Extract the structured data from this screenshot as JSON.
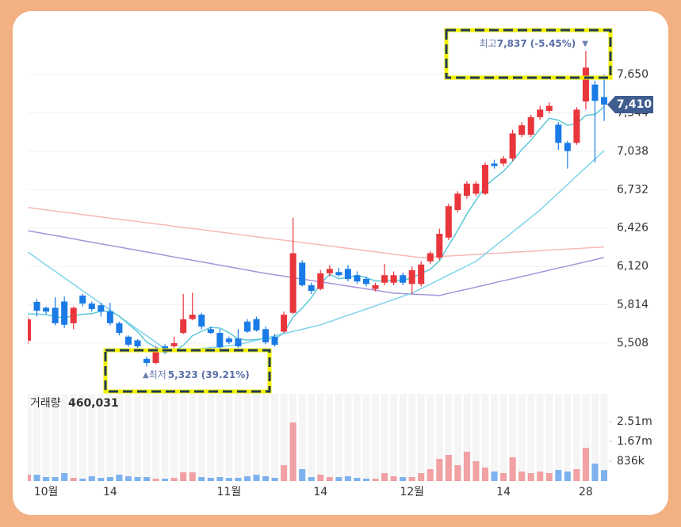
{
  "chart_data": {
    "type": "candlestick",
    "categories": [
      null,
      null,
      "10월",
      null,
      null,
      null,
      null,
      null,
      null,
      "14",
      null,
      null,
      null,
      null,
      null,
      null,
      null,
      null,
      null,
      null,
      null,
      null,
      "11월",
      null,
      null,
      null,
      null,
      null,
      null,
      null,
      null,
      null,
      "14",
      null,
      null,
      null,
      null,
      null,
      null,
      null,
      null,
      null,
      "12월",
      null,
      null,
      null,
      null,
      null,
      null,
      null,
      null,
      null,
      "14",
      null,
      null,
      null,
      null,
      null,
      null,
      null,
      null,
      "28",
      null,
      null
    ],
    "open": [
      5528,
      5837,
      5790,
      5790,
      5840,
      5667,
      5887,
      5824,
      5810,
      5760,
      5667,
      5560,
      5530,
      5383,
      5350,
      5483,
      5483,
      5590,
      5700,
      5735,
      5620,
      5590,
      5545,
      5545,
      5680,
      5700,
      5620,
      5560,
      5600,
      5750,
      6150,
      5970,
      5940,
      6065,
      6075,
      6100,
      6050,
      6020,
      5940,
      5990,
      5990,
      6050,
      5980,
      5980,
      6160,
      6190,
      6350,
      6570,
      6683,
      6700,
      6700,
      6940,
      6940,
      6980,
      7170,
      7170,
      7310,
      7360,
      7250,
      7105,
      7105,
      7435,
      7570,
      7470
    ],
    "high": [
      5720,
      5860,
      5800,
      5875,
      5880,
      5800,
      5900,
      5840,
      5830,
      5830,
      5680,
      5570,
      5540,
      5400,
      5480,
      5500,
      5560,
      5900,
      5910,
      5750,
      5640,
      5620,
      5560,
      5620,
      5700,
      5720,
      5640,
      5580,
      5760,
      6507,
      6170,
      5990,
      6090,
      6130,
      6110,
      6130,
      6080,
      6040,
      5990,
      6140,
      6080,
      6070,
      6120,
      6160,
      6240,
      6420,
      6620,
      6720,
      6800,
      6800,
      6950,
      6970,
      7000,
      7210,
      7270,
      7330,
      7400,
      7430,
      7270,
      7120,
      7390,
      7837,
      7600,
      7650
    ],
    "low": [
      5500,
      5720,
      5740,
      5650,
      5630,
      5620,
      5800,
      5760,
      5720,
      5650,
      5570,
      5480,
      5470,
      5323,
      5340,
      5420,
      5470,
      5580,
      5690,
      5620,
      5580,
      5460,
      5500,
      5470,
      5590,
      5600,
      5500,
      5480,
      5590,
      5740,
      5960,
      5900,
      5930,
      6040,
      6040,
      6000,
      5980,
      5960,
      5920,
      5970,
      5970,
      5970,
      5900,
      5960,
      6140,
      6170,
      6330,
      6550,
      6660,
      6680,
      6690,
      6900,
      6920,
      6960,
      7150,
      7150,
      7290,
      7340,
      7050,
      6900,
      7090,
      7370,
      6950,
      7280
    ],
    "close": [
      5698,
      5767,
      5760,
      5667,
      5655,
      5790,
      5824,
      5780,
      5760,
      5667,
      5590,
      5496,
      5483,
      5350,
      5463,
      5433,
      5508,
      5698,
      5735,
      5640,
      5590,
      5475,
      5515,
      5483,
      5600,
      5610,
      5515,
      5495,
      5735,
      6225,
      5970,
      5925,
      6065,
      6100,
      6050,
      6020,
      6000,
      5980,
      5970,
      6050,
      6050,
      5990,
      6090,
      6135,
      6225,
      6380,
      6600,
      6700,
      6780,
      6780,
      6930,
      6920,
      6980,
      7180,
      7245,
      7310,
      7370,
      7400,
      7105,
      7040,
      7370,
      7705,
      7440,
      7410
    ],
    "up_color": "#e8363c",
    "down_color": "#1a7be6",
    "moving_averages": [
      {
        "color": "#f6b9b6",
        "values": [
          6589,
          6580,
          6570,
          6561,
          6552,
          6543,
          6533,
          6524,
          6515,
          6505,
          6496,
          6487,
          6478,
          6468,
          6459,
          6450,
          6440,
          6431,
          6422,
          6413,
          6403,
          6394,
          6385,
          6375,
          6366,
          6357,
          6348,
          6338,
          6329,
          6320,
          6310,
          6301,
          6292,
          6283,
          6273,
          6264,
          6255,
          6245,
          6236,
          6227,
          6218,
          6208,
          6199,
          6190,
          6194,
          6198,
          6203,
          6207,
          6211,
          6215,
          6220,
          6224,
          6228,
          6233,
          6237,
          6241,
          6245,
          6250,
          6254,
          6258,
          6262,
          6267,
          6271,
          6275
        ]
      },
      {
        "color": "#a894dc",
        "values": [
          6405,
          6392,
          6379,
          6366,
          6353,
          6340,
          6326,
          6313,
          6300,
          6287,
          6274,
          6261,
          6248,
          6235,
          6222,
          6209,
          6195,
          6182,
          6169,
          6156,
          6143,
          6130,
          6117,
          6104,
          6091,
          6077,
          6064,
          6053,
          6042,
          6030,
          6019,
          6008,
          5997,
          5986,
          5974,
          5963,
          5952,
          5941,
          5930,
          5918,
          5907,
          5903,
          5899,
          5896,
          5892,
          5888,
          5905,
          5922,
          5938,
          5955,
          5972,
          5989,
          6006,
          6022,
          6039,
          6056,
          6073,
          6090,
          6107,
          6123,
          6140,
          6157,
          6174,
          6191
        ]
      },
      {
        "color": "#7fd4ea",
        "values": [
          6235,
          6184,
          6132,
          6081,
          6029,
          5978,
          5927,
          5875,
          5824,
          5773,
          5721,
          5670,
          5618,
          5567,
          5515,
          5464,
          5460,
          5458,
          5460,
          5465,
          5472,
          5480,
          5488,
          5496,
          5514,
          5531,
          5549,
          5566,
          5584,
          5602,
          5619,
          5637,
          5654,
          5679,
          5705,
          5730,
          5755,
          5780,
          5806,
          5831,
          5856,
          5882,
          5907,
          5943,
          5979,
          6015,
          6052,
          6088,
          6124,
          6160,
          6219,
          6277,
          6336,
          6394,
          6453,
          6511,
          6570,
          6638,
          6705,
          6773,
          6841,
          6909,
          6976,
          7044
        ]
      },
      {
        "color": "#5cc8d8",
        "values": [
          5740,
          5740,
          5735,
          5720,
          5709,
          5728,
          5739,
          5743,
          5762,
          5764,
          5724,
          5659,
          5599,
          5517,
          5476,
          5445,
          5447,
          5490,
          5567,
          5603,
          5634,
          5628,
          5591,
          5541,
          5533,
          5537,
          5545,
          5541,
          5591,
          5716,
          5788,
          5870,
          5984,
          6057,
          6022,
          6032,
          6047,
          6030,
          6004,
          6004,
          6010,
          6008,
          6030,
          6063,
          6098,
          6164,
          6286,
          6408,
          6537,
          6648,
          6758,
          6822,
          6878,
          6958,
          7051,
          7127,
          7217,
          7301,
          7286,
          7245,
          7257,
          7324,
          7332,
          7393
        ]
      }
    ],
    "ylim": [
      5148,
      8023
    ],
    "yticks": [
      {
        "value": 5508,
        "label": "5,508"
      },
      {
        "value": 5814,
        "label": "5,814"
      },
      {
        "value": 6120,
        "label": "6,120"
      },
      {
        "value": 6426,
        "label": "6,426"
      },
      {
        "value": 6732,
        "label": "6,732"
      },
      {
        "value": 7038,
        "label": "7,038"
      },
      {
        "value": 7344,
        "label": "7,344"
      },
      {
        "value": 7650,
        "label": "7,650"
      }
    ],
    "grid": true,
    "last_price": {
      "value": 7410,
      "label": "7,410"
    },
    "high_note": {
      "prefix": "최고",
      "value": 7837,
      "label": "7,837",
      "change": "(-5.45%)",
      "arrow": "▼"
    },
    "low_note": {
      "arrow": "▲",
      "prefix": "최저",
      "value": 5323,
      "label": "5,323",
      "change": "(39.21%)"
    },
    "volume": {
      "title": "거래량",
      "current": {
        "value": 460031,
        "label": "460,031"
      },
      "up_color": "#f1a0a3",
      "down_color": "#7db2ee",
      "values": [
        268000,
        268000,
        167000,
        167000,
        334000,
        134000,
        100000,
        201000,
        134000,
        167000,
        268000,
        201000,
        167000,
        167000,
        100000,
        100000,
        134000,
        368000,
        368000,
        167000,
        134000,
        167000,
        134000,
        134000,
        201000,
        268000,
        201000,
        134000,
        669000,
        2470000,
        502000,
        167000,
        268000,
        167000,
        167000,
        201000,
        134000,
        100000,
        100000,
        334000,
        201000,
        167000,
        167000,
        334000,
        502000,
        936000,
        1104000,
        669000,
        1237000,
        836000,
        568000,
        401000,
        334000,
        1003000,
        401000,
        334000,
        401000,
        334000,
        468000,
        401000,
        502000,
        1404000,
        736000,
        460031
      ],
      "ylim": [
        0,
        3678400
      ],
      "yticks": [
        {
          "value": 836000,
          "label": "836k"
        },
        {
          "value": 1672000,
          "label": "1.67m"
        },
        {
          "value": 2508000,
          "label": "2.51m"
        }
      ]
    }
  }
}
